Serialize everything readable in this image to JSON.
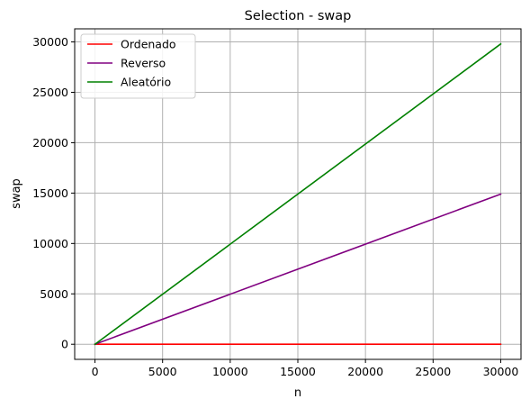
{
  "chart_data": {
    "type": "line",
    "title": "Selection - swap",
    "xlabel": "n",
    "ylabel": "swap",
    "xlim": [
      -1500,
      31500
    ],
    "ylim": [
      -1500,
      31300
    ],
    "x_ticks": [
      0,
      5000,
      10000,
      15000,
      20000,
      25000,
      30000
    ],
    "y_ticks": [
      0,
      5000,
      10000,
      15000,
      20000,
      25000,
      30000
    ],
    "grid": true,
    "legend_position": "top-left",
    "series": [
      {
        "name": "Ordenado",
        "color": "#ff0000",
        "x": [
          0,
          30000
        ],
        "y": [
          0,
          0
        ]
      },
      {
        "name": "Reverso",
        "color": "#800080",
        "x": [
          0,
          30000
        ],
        "y": [
          0,
          14900
        ]
      },
      {
        "name": "Aleatório",
        "color": "#008000",
        "x": [
          0,
          30000
        ],
        "y": [
          0,
          29800
        ]
      }
    ]
  }
}
